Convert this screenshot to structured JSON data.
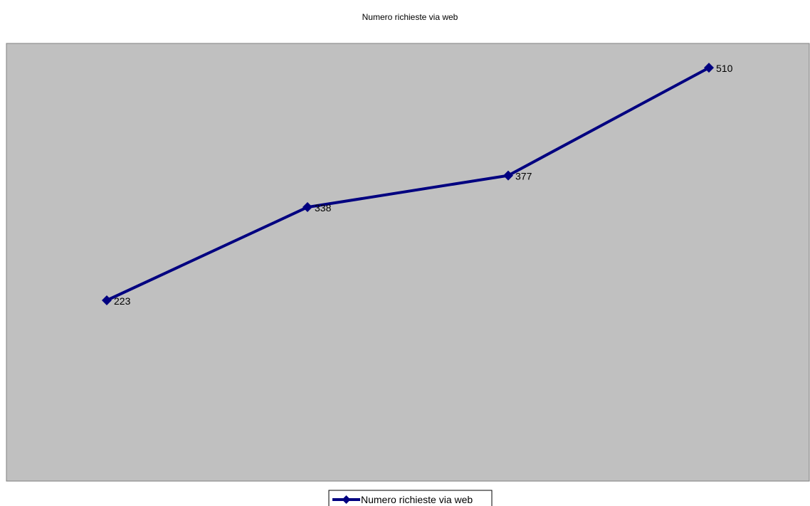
{
  "chart_data": {
    "type": "line",
    "title": "Numero richieste via web",
    "xlabel": "",
    "ylabel": "",
    "categories": [
      "",
      "",
      "",
      ""
    ],
    "series": [
      {
        "name": "Numero richieste via web",
        "values": [
          223,
          338,
          377,
          510
        ],
        "color": "#000080",
        "marker": "diamond"
      }
    ],
    "ylim": [
      0,
      540
    ],
    "grid": false,
    "legend": "bottom",
    "plot_background": "#C0C0C0"
  }
}
